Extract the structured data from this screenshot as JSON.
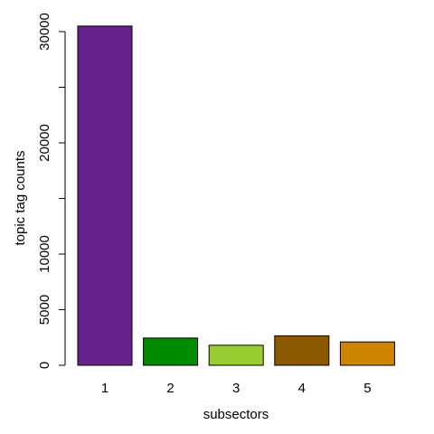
{
  "chart_data": {
    "type": "bar",
    "categories": [
      "1",
      "2",
      "3",
      "4",
      "5"
    ],
    "values": [
      30500,
      2450,
      1800,
      2650,
      2100
    ],
    "colors": [
      "#68228b",
      "#008b00",
      "#9acd32",
      "#8b5a00",
      "#cd8500"
    ],
    "xlabel": "subsectors",
    "ylabel": "topic tag counts",
    "ylim": [
      0,
      31000
    ],
    "y_ticks": [
      0,
      5000,
      10000,
      20000,
      30000
    ],
    "y_minor_ticks": [
      15000,
      25000
    ],
    "grid": false
  }
}
